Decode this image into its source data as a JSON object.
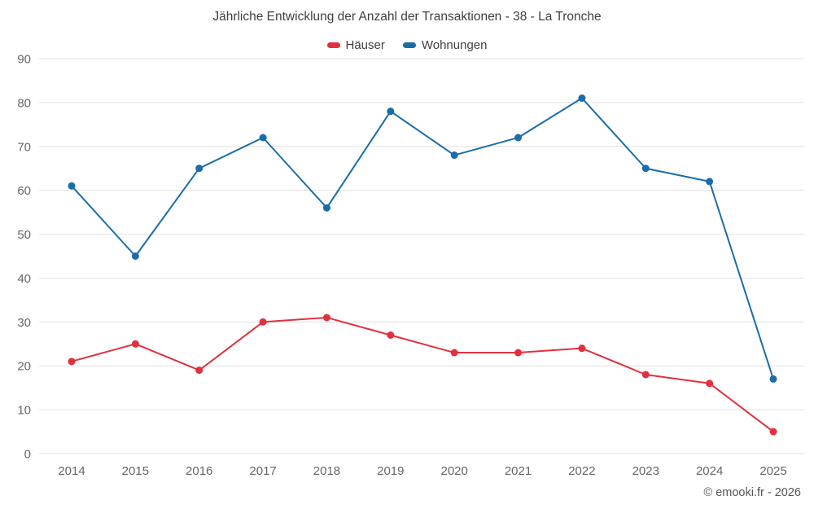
{
  "chart_data": {
    "type": "line",
    "title": "Jährliche Entwicklung der Anzahl der Transaktionen - 38 - La Tronche",
    "categories": [
      "2014",
      "2015",
      "2016",
      "2017",
      "2018",
      "2019",
      "2020",
      "2021",
      "2022",
      "2023",
      "2024",
      "2025"
    ],
    "series": [
      {
        "name": "Häuser",
        "color": "#e0313d",
        "values": [
          21,
          25,
          19,
          30,
          31,
          27,
          23,
          23,
          24,
          18,
          16,
          5
        ]
      },
      {
        "name": "Wohnungen",
        "color": "#1a6da6",
        "values": [
          61,
          45,
          65,
          72,
          56,
          78,
          68,
          72,
          81,
          65,
          62,
          17
        ]
      }
    ],
    "ylim": [
      0,
      90
    ],
    "ytick_step": 10,
    "grid": "horizontal-only",
    "grid_color": "#e1e1e1",
    "legend_position": "top-center",
    "footer": "© emooki.fr - 2026"
  }
}
